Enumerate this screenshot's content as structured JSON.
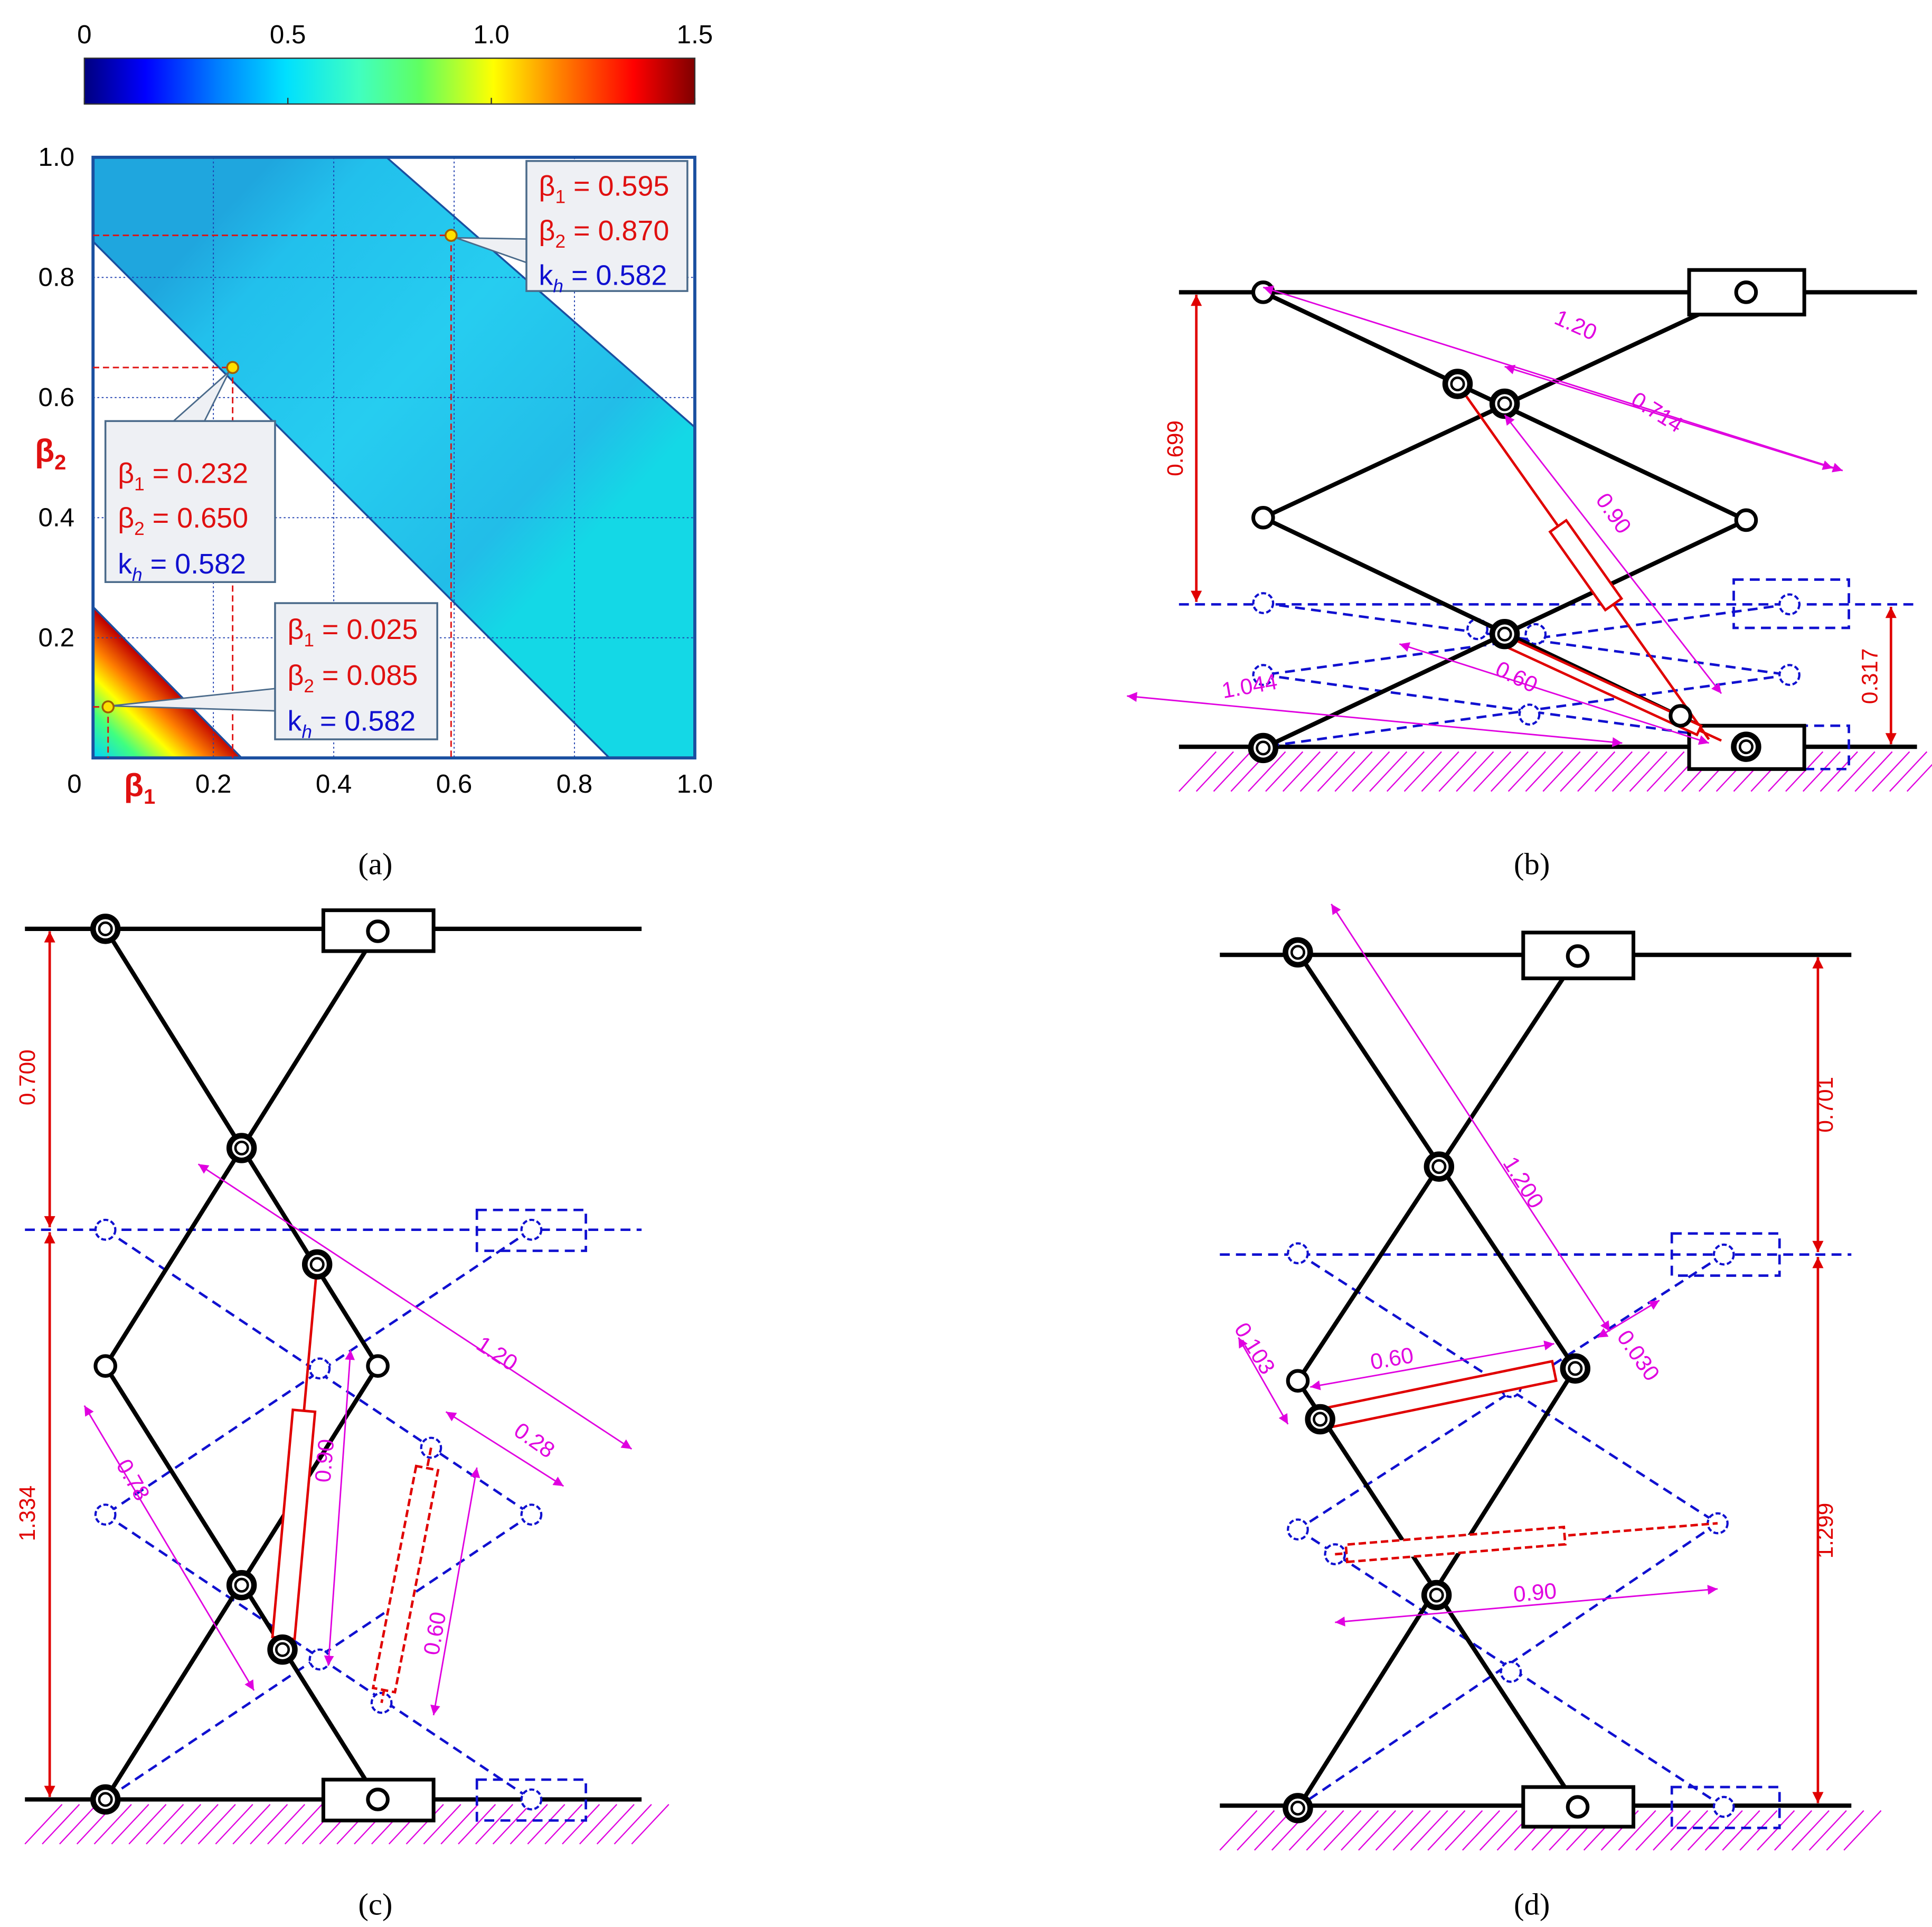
{
  "chart_data": {
    "type": "heatmap",
    "x_label": "β",
    "x_label_sub": "1",
    "y_label": "β",
    "y_label_sub": "2",
    "xlim": [
      0,
      1
    ],
    "ylim": [
      0,
      1
    ],
    "xticks": [
      0,
      0.2,
      0.4,
      0.6,
      0.8,
      {
        "value": 1,
        "label": "1.0"
      }
    ],
    "yticks": [
      0.2,
      0.4,
      0.6,
      0.8,
      {
        "value": 1,
        "label": "1.0"
      }
    ],
    "grid": true,
    "colorbar": {
      "lim": [
        0,
        1.5
      ],
      "ticks": [
        0,
        0.5,
        {
          "value": 1,
          "label": "1.0"
        },
        1.5
      ]
    },
    "points": [
      {
        "x": 0.595,
        "y": 0.87,
        "lines": [
          {
            "sym": "β",
            "sub": "1",
            "rest": " = 0.595",
            "color": "#e01010"
          },
          {
            "sym": "β",
            "sub": "2",
            "rest": " = 0.870",
            "color": "#e01010"
          },
          {
            "sym": "k",
            "sub": "h",
            "rest": " = 0.582",
            "color": "#1010d0"
          }
        ]
      },
      {
        "x": 0.232,
        "y": 0.65,
        "lines": [
          {
            "sym": "β",
            "sub": "1",
            "rest": " = 0.232",
            "color": "#e01010"
          },
          {
            "sym": "β",
            "sub": "2",
            "rest": " = 0.650",
            "color": "#e01010"
          },
          {
            "sym": "k",
            "sub": "h",
            "rest": " = 0.582",
            "color": "#1010d0"
          }
        ]
      },
      {
        "x": 0.025,
        "y": 0.085,
        "lines": [
          {
            "sym": "β",
            "sub": "1",
            "rest": " = 0.025",
            "color": "#e01010"
          },
          {
            "sym": "β",
            "sub": "2",
            "rest": " = 0.085",
            "color": "#e01010"
          },
          {
            "sym": "k",
            "sub": "h",
            "rest": " = 0.582",
            "color": "#1010d0"
          }
        ]
      }
    ]
  },
  "diagrams": {
    "b": {
      "red_dims": [
        "0.699",
        "0.317"
      ],
      "dims": [
        "1.20",
        "0.714",
        "0.90",
        "0.60",
        "1.044"
      ]
    },
    "c": {
      "red_dims": [
        "0.700",
        "1.334"
      ],
      "dims": [
        "1.20",
        "0.28",
        "0.78",
        "0.90",
        "0.60"
      ]
    },
    "d": {
      "red_dims": [
        "0.701",
        "1.299"
      ],
      "dims": [
        "1.200",
        "0.030",
        "0.103",
        "0.60",
        "0.90"
      ]
    }
  },
  "captions": [
    "(a)",
    "(b)",
    "(c)",
    "(d)"
  ]
}
